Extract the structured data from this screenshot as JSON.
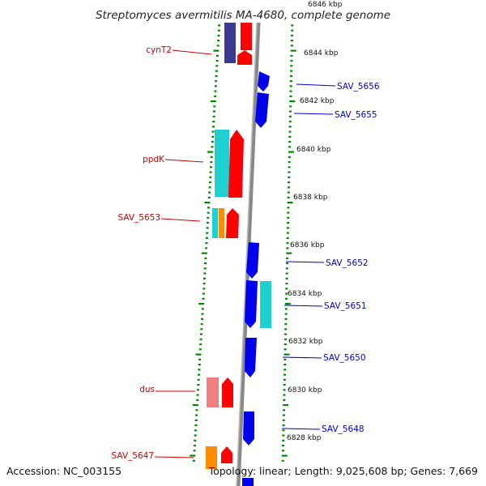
{
  "title": "Streptomyces avermitilis MA-4680, complete genome",
  "footer": {
    "accession": "Accession: NC_003155",
    "summary": "Topology: linear; Length: 9,025,608 bp; Genes: 7,669"
  },
  "colors": {
    "red": "#ff0000",
    "blue": "#0000ee",
    "cyan": "#1fd0d0",
    "orange": "#ff8c00",
    "salmon": "#f08080",
    "navy": "#3a3a90",
    "ticks": "#008800",
    "left_label": "#cc0000",
    "right_label": "#0000cc"
  },
  "kbp_ticks": [
    "6846 kbp",
    "6844 kbp",
    "6842 kbp",
    "6840 kbp",
    "6838 kbp",
    "6836 kbp",
    "6834 kbp",
    "6832 kbp",
    "6830 kbp",
    "6828 kbp"
  ],
  "left_labels": [
    "cynT2",
    "ppdK",
    "SAV_5653",
    "dus",
    "SAV_5647"
  ],
  "right_labels": [
    "SAV_5656",
    "SAV_5655",
    "SAV_5652",
    "SAV_5651",
    "SAV_5650",
    "SAV_5648"
  ]
}
